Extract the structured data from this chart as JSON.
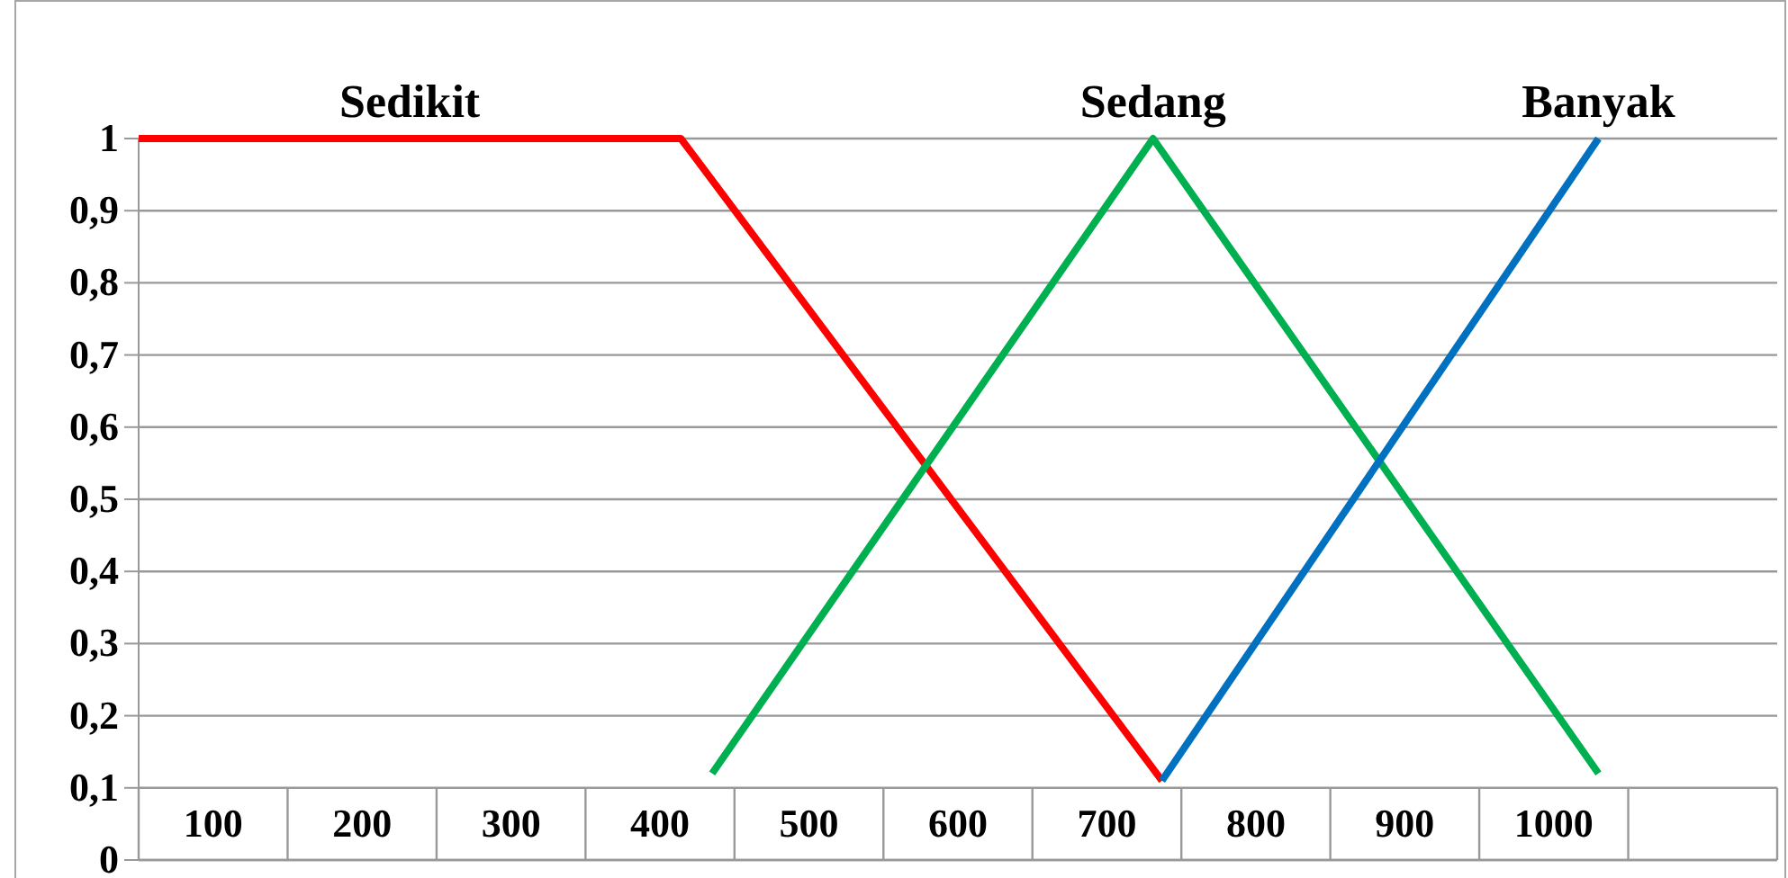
{
  "chart_data": {
    "type": "line",
    "xlim": [
      50,
      1150
    ],
    "xticks": [
      100,
      200,
      300,
      400,
      500,
      600,
      700,
      800,
      900,
      1000
    ],
    "ylim": [
      0,
      1
    ],
    "yticks": [
      0,
      {
        "value": 0.1,
        "label": "0,1"
      },
      {
        "value": 0.2,
        "label": "0,2"
      },
      {
        "value": 0.3,
        "label": "0,3"
      },
      {
        "value": 0.4,
        "label": "0,4"
      },
      {
        "value": 0.5,
        "label": "0,5"
      },
      {
        "value": 0.6,
        "label": "0,6"
      },
      {
        "value": 0.7,
        "label": "0,7"
      },
      {
        "value": 0.8,
        "label": "0,8"
      },
      {
        "value": 0.9,
        "label": "0,9"
      },
      1
    ],
    "grid": "y",
    "legend": false,
    "marker": "none",
    "line_style": "solid",
    "series": [
      {
        "name": "Sedikit",
        "color": "#ff0000",
        "x": [
          50,
          414,
          737
        ],
        "values": [
          1,
          1,
          0.11
        ]
      },
      {
        "name": "Sedang",
        "color": "#00b050",
        "x": [
          435,
          731,
          1030
        ],
        "values": [
          0.12,
          1,
          0.12
        ]
      },
      {
        "name": "Banyak",
        "color": "#0070c0",
        "x": [
          737,
          1030
        ],
        "values": [
          0.11,
          1
        ]
      }
    ]
  }
}
